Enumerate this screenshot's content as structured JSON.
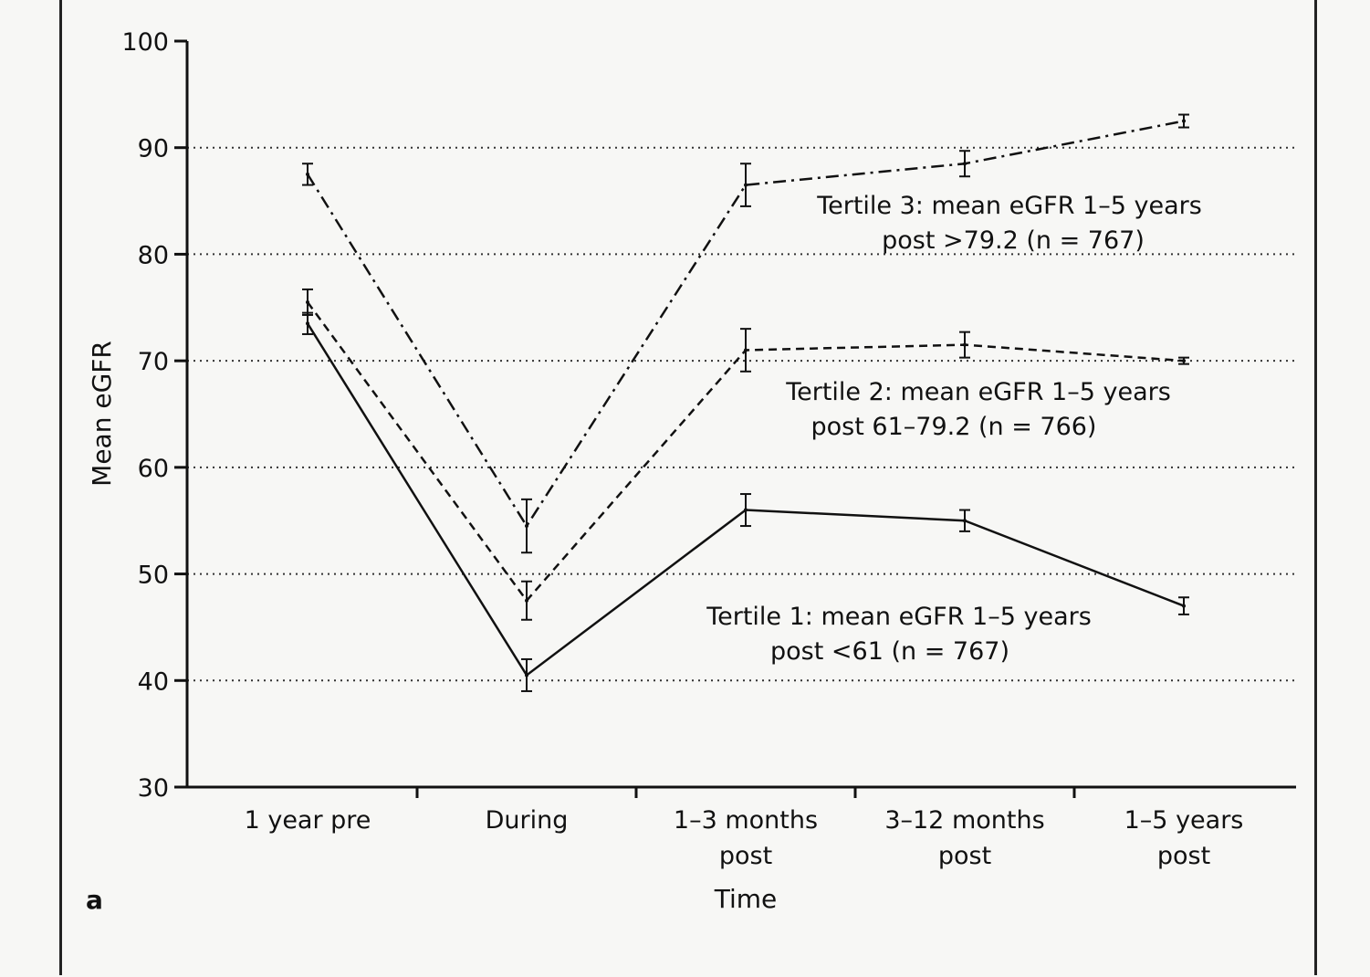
{
  "chart_data": {
    "type": "line",
    "panel_label": "a",
    "xlabel": "Time",
    "ylabel": "Mean eGFR",
    "ylim": [
      30,
      100
    ],
    "yticks": [
      30,
      40,
      50,
      60,
      70,
      80,
      90,
      100
    ],
    "grid": "dotted horizontal at 40–90",
    "categories": [
      [
        "1 year pre"
      ],
      [
        "During"
      ],
      [
        "1–3 months",
        "post"
      ],
      [
        "3–12 months",
        "post"
      ],
      [
        "1–5 years",
        "post"
      ]
    ],
    "series": [
      {
        "name": "Tertile 3",
        "style": "dash-dot",
        "values": [
          87.5,
          54.5,
          86.5,
          88.5,
          92.5
        ],
        "error": [
          1.0,
          2.5,
          2.0,
          1.2,
          0.6
        ],
        "label": [
          "Tertile 3: mean eGFR 1–5 years",
          "post >79.2 (n = 767)"
        ]
      },
      {
        "name": "Tertile 2",
        "style": "dashed",
        "values": [
          75.5,
          47.5,
          71.0,
          71.5,
          70.0
        ],
        "error": [
          1.2,
          1.8,
          2.0,
          1.2,
          0.3
        ],
        "label": [
          "Tertile 2: mean eGFR 1–5 years",
          "post 61–79.2 (n = 766)"
        ]
      },
      {
        "name": "Tertile 1",
        "style": "solid",
        "values": [
          73.5,
          40.5,
          56.0,
          55.0,
          47.0
        ],
        "error": [
          1.0,
          1.5,
          1.5,
          1.0,
          0.8
        ],
        "label": [
          "Tertile 1: mean eGFR 1–5 years",
          "post <61 (n = 767)"
        ]
      }
    ]
  }
}
